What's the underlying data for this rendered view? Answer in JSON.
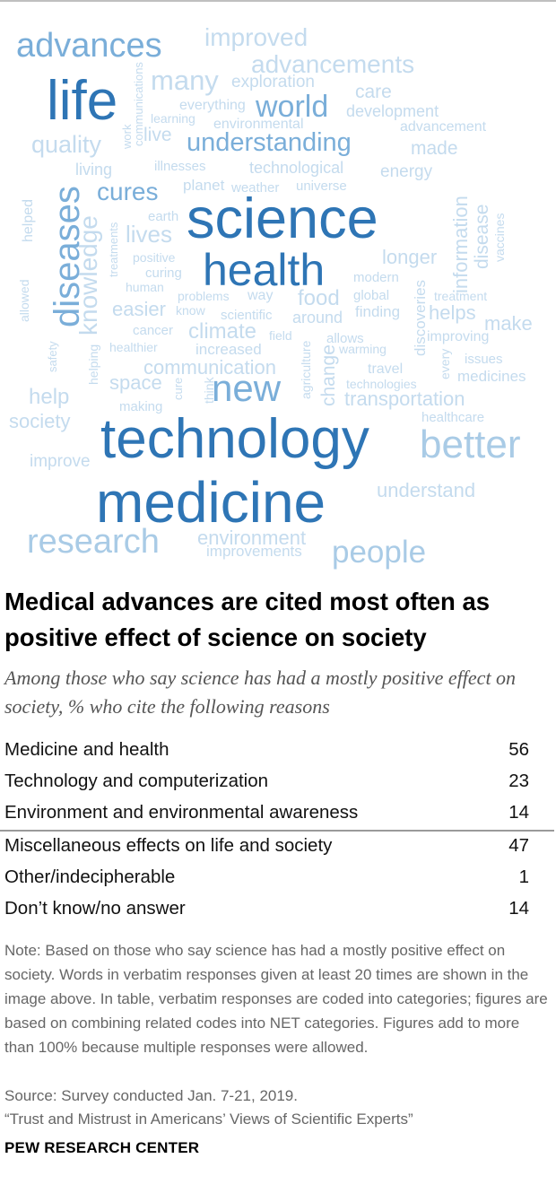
{
  "colors": {
    "dark": "#2e75b5",
    "medium": "#7aaed9",
    "light": "#a9cbe6",
    "lighter": "#c4dbee",
    "faint": "#d7e7f3"
  },
  "chart_data": {
    "type": "word_cloud",
    "words": [
      {
        "text": "advances",
        "weight": 5,
        "tone": "medium"
      },
      {
        "text": "improved",
        "weight": 3,
        "tone": "lighter"
      },
      {
        "text": "advancements",
        "weight": 3,
        "tone": "lighter"
      },
      {
        "text": "life",
        "weight": 7,
        "tone": "dark"
      },
      {
        "text": "many",
        "weight": 3,
        "tone": "lighter"
      },
      {
        "text": "exploration",
        "weight": 2,
        "tone": "lighter"
      },
      {
        "text": "communications",
        "weight": 1,
        "tone": "lighter"
      },
      {
        "text": "everything",
        "weight": 1,
        "tone": "lighter"
      },
      {
        "text": "world",
        "weight": 4,
        "tone": "medium"
      },
      {
        "text": "care",
        "weight": 2,
        "tone": "lighter"
      },
      {
        "text": "development",
        "weight": 2,
        "tone": "lighter"
      },
      {
        "text": "learning",
        "weight": 1,
        "tone": "lighter"
      },
      {
        "text": "environmental",
        "weight": 1,
        "tone": "lighter"
      },
      {
        "text": "advancement",
        "weight": 2,
        "tone": "lighter"
      },
      {
        "text": "quality",
        "weight": 3,
        "tone": "lighter"
      },
      {
        "text": "work",
        "weight": 1,
        "tone": "lighter"
      },
      {
        "text": "live",
        "weight": 2,
        "tone": "lighter"
      },
      {
        "text": "understanding",
        "weight": 4,
        "tone": "medium"
      },
      {
        "text": "made",
        "weight": 2,
        "tone": "lighter"
      },
      {
        "text": "living",
        "weight": 2,
        "tone": "lighter"
      },
      {
        "text": "illnesses",
        "weight": 1,
        "tone": "lighter"
      },
      {
        "text": "technological",
        "weight": 2,
        "tone": "lighter"
      },
      {
        "text": "energy",
        "weight": 2,
        "tone": "lighter"
      },
      {
        "text": "cures",
        "weight": 4,
        "tone": "medium"
      },
      {
        "text": "planet",
        "weight": 2,
        "tone": "lighter"
      },
      {
        "text": "weather",
        "weight": 1,
        "tone": "lighter"
      },
      {
        "text": "universe",
        "weight": 1,
        "tone": "lighter"
      },
      {
        "text": "diseases",
        "weight": 5,
        "tone": "medium"
      },
      {
        "text": "helped",
        "weight": 1,
        "tone": "lighter"
      },
      {
        "text": "earth",
        "weight": 1,
        "tone": "lighter"
      },
      {
        "text": "science",
        "weight": 10,
        "tone": "dark"
      },
      {
        "text": "information",
        "weight": 2,
        "tone": "lighter"
      },
      {
        "text": "disease",
        "weight": 2,
        "tone": "lighter"
      },
      {
        "text": "vaccines",
        "weight": 1,
        "tone": "lighter"
      },
      {
        "text": "knowledge",
        "weight": 3,
        "tone": "lighter"
      },
      {
        "text": "treatments",
        "weight": 1,
        "tone": "lighter"
      },
      {
        "text": "lives",
        "weight": 3,
        "tone": "lighter"
      },
      {
        "text": "positive",
        "weight": 1,
        "tone": "lighter"
      },
      {
        "text": "health",
        "weight": 8,
        "tone": "dark"
      },
      {
        "text": "longer",
        "weight": 2,
        "tone": "lighter"
      },
      {
        "text": "curing",
        "weight": 1,
        "tone": "lighter"
      },
      {
        "text": "allowed",
        "weight": 1,
        "tone": "lighter"
      },
      {
        "text": "human",
        "weight": 1,
        "tone": "lighter"
      },
      {
        "text": "modern",
        "weight": 1,
        "tone": "lighter"
      },
      {
        "text": "discoveries",
        "weight": 2,
        "tone": "lighter"
      },
      {
        "text": "problems",
        "weight": 1,
        "tone": "lighter"
      },
      {
        "text": "way",
        "weight": 2,
        "tone": "lighter"
      },
      {
        "text": "food",
        "weight": 3,
        "tone": "lighter"
      },
      {
        "text": "global",
        "weight": 1,
        "tone": "lighter"
      },
      {
        "text": "treatment",
        "weight": 1,
        "tone": "lighter"
      },
      {
        "text": "easier",
        "weight": 2,
        "tone": "lighter"
      },
      {
        "text": "know",
        "weight": 1,
        "tone": "lighter"
      },
      {
        "text": "scientific",
        "weight": 1,
        "tone": "lighter"
      },
      {
        "text": "around",
        "weight": 2,
        "tone": "lighter"
      },
      {
        "text": "finding",
        "weight": 1,
        "tone": "lighter"
      },
      {
        "text": "helps",
        "weight": 3,
        "tone": "lighter"
      },
      {
        "text": "make",
        "weight": 2,
        "tone": "lighter"
      },
      {
        "text": "cancer",
        "weight": 1,
        "tone": "lighter"
      },
      {
        "text": "climate",
        "weight": 3,
        "tone": "lighter"
      },
      {
        "text": "field",
        "weight": 1,
        "tone": "lighter"
      },
      {
        "text": "allows",
        "weight": 1,
        "tone": "lighter"
      },
      {
        "text": "improving",
        "weight": 1,
        "tone": "lighter"
      },
      {
        "text": "healthier",
        "weight": 1,
        "tone": "lighter"
      },
      {
        "text": "increased",
        "weight": 1,
        "tone": "lighter"
      },
      {
        "text": "agriculture",
        "weight": 1,
        "tone": "lighter"
      },
      {
        "text": "warming",
        "weight": 1,
        "tone": "lighter"
      },
      {
        "text": "every",
        "weight": 1,
        "tone": "lighter"
      },
      {
        "text": "issues",
        "weight": 1,
        "tone": "lighter"
      },
      {
        "text": "safety",
        "weight": 1,
        "tone": "lighter"
      },
      {
        "text": "communication",
        "weight": 2,
        "tone": "lighter"
      },
      {
        "text": "change",
        "weight": 2,
        "tone": "lighter"
      },
      {
        "text": "travel",
        "weight": 1,
        "tone": "lighter"
      },
      {
        "text": "medicines",
        "weight": 2,
        "tone": "lighter"
      },
      {
        "text": "helping",
        "weight": 1,
        "tone": "lighter"
      },
      {
        "text": "space",
        "weight": 2,
        "tone": "lighter"
      },
      {
        "text": "cure",
        "weight": 1,
        "tone": "lighter"
      },
      {
        "text": "think",
        "weight": 1,
        "tone": "lighter"
      },
      {
        "text": "new",
        "weight": 6,
        "tone": "medium"
      },
      {
        "text": "technologies",
        "weight": 1,
        "tone": "lighter"
      },
      {
        "text": "help",
        "weight": 3,
        "tone": "lighter"
      },
      {
        "text": "making",
        "weight": 1,
        "tone": "lighter"
      },
      {
        "text": "transportation",
        "weight": 2,
        "tone": "lighter"
      },
      {
        "text": "society",
        "weight": 2,
        "tone": "lighter"
      },
      {
        "text": "healthcare",
        "weight": 1,
        "tone": "lighter"
      },
      {
        "text": "technology",
        "weight": 9,
        "tone": "dark"
      },
      {
        "text": "better",
        "weight": 6,
        "tone": "light"
      },
      {
        "text": "improve",
        "weight": 2,
        "tone": "lighter"
      },
      {
        "text": "understand",
        "weight": 2,
        "tone": "lighter"
      },
      {
        "text": "medicine",
        "weight": 9,
        "tone": "dark"
      },
      {
        "text": "research",
        "weight": 5,
        "tone": "light"
      },
      {
        "text": "environment",
        "weight": 2,
        "tone": "lighter"
      },
      {
        "text": "improvements",
        "weight": 2,
        "tone": "lighter"
      },
      {
        "text": "people",
        "weight": 4,
        "tone": "light"
      }
    ],
    "categories": [
      "Medicine and health",
      "Technology and computerization",
      "Environment and environmental awareness",
      "Miscellaneous effects on life and society",
      "Other/indecipherable",
      "Don’t know/no answer"
    ],
    "values": [
      56,
      23,
      14,
      47,
      1,
      14
    ]
  },
  "headline": "Medical advances are cited most often as positive effect of science on society",
  "subtitle": "Among those who say science has had a mostly positive effect on society, % who cite the following reasons",
  "table": {
    "rows": [
      {
        "label": "Medicine and health",
        "value": "56"
      },
      {
        "label": "Technology and computerization",
        "value": "23"
      },
      {
        "label": "Environment and environmental awareness",
        "value": "14"
      },
      {
        "label": "Miscellaneous effects on life and society",
        "value": "47"
      },
      {
        "label": "Other/indecipherable",
        "value": "1"
      },
      {
        "label": "Don’t know/no answer",
        "value": "14"
      }
    ]
  },
  "note": "Note: Based on those who say science has had a mostly positive effect on society. Words in verbatim responses given at least 20 times are shown in the image above. In table, verbatim responses are coded into categories; figures are based on combining related codes into NET categories. Figures add to more than 100% because multiple responses were allowed.",
  "source": "Source: Survey conducted Jan. 7-21, 2019.",
  "report": "“Trust and Mistrust in Americans’ Views of Scientific Experts”",
  "brand": "PEW RESEARCH CENTER"
}
